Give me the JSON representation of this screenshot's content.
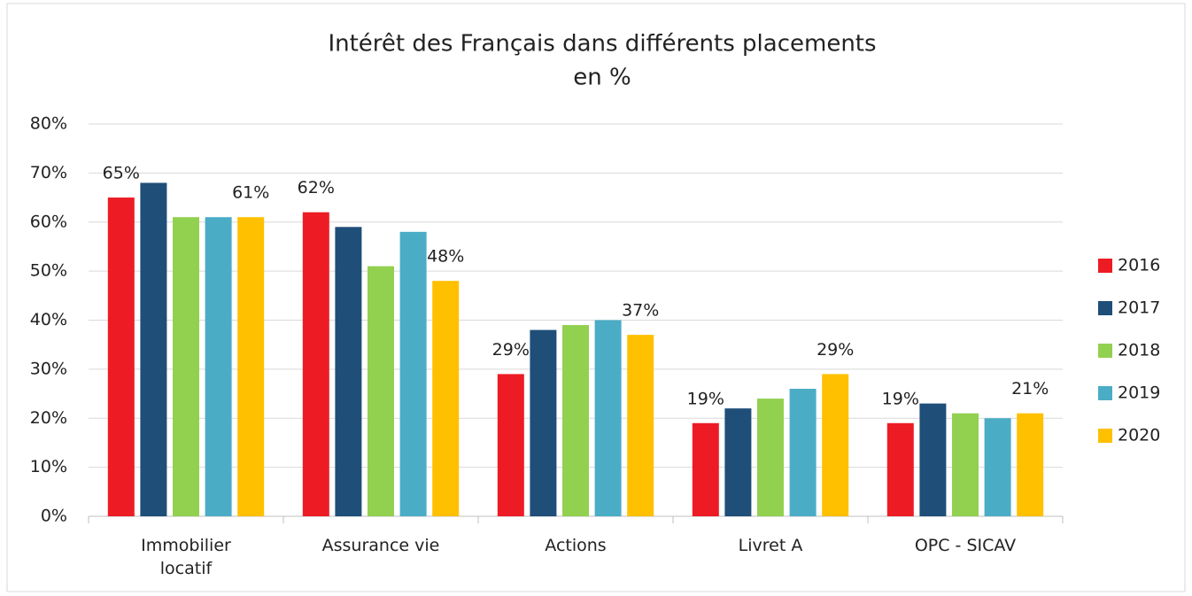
{
  "chart_data": {
    "type": "bar",
    "title": [
      "Intérêt des Français dans différents placements",
      "en %"
    ],
    "categories": [
      "Immobilier locatif",
      "Assurance vie",
      "Actions",
      "Livret A",
      "OPC - SICAV"
    ],
    "series": [
      {
        "name": "2016",
        "color": "#ed1c24",
        "values": [
          65,
          62,
          29,
          19,
          19
        ],
        "value_labels": [
          "65%",
          "62%",
          "29%",
          "19%",
          "19%"
        ]
      },
      {
        "name": "2017",
        "color": "#1f4e79",
        "values": [
          68,
          59,
          38,
          22,
          23
        ]
      },
      {
        "name": "2018",
        "color": "#92d050",
        "values": [
          61,
          51,
          39,
          24,
          21
        ]
      },
      {
        "name": "2019",
        "color": "#4bacc6",
        "values": [
          61,
          58,
          40,
          26,
          20
        ]
      },
      {
        "name": "2020",
        "color": "#ffc000",
        "values": [
          61,
          48,
          37,
          29,
          21
        ],
        "value_labels": [
          "61%",
          "48%",
          "37%",
          "29%",
          "21%"
        ]
      }
    ],
    "ylim": [
      0,
      80
    ],
    "yticks": [
      {
        "value": 0,
        "label": "0%"
      },
      {
        "value": 10,
        "label": "10%"
      },
      {
        "value": 20,
        "label": "20%"
      },
      {
        "value": 30,
        "label": "30%"
      },
      {
        "value": 40,
        "label": "40%"
      },
      {
        "value": 50,
        "label": "50%"
      },
      {
        "value": 60,
        "label": "60%"
      },
      {
        "value": 70,
        "label": "70%"
      },
      {
        "value": 80,
        "label": "80%"
      }
    ],
    "grid": true,
    "legend": "right"
  }
}
